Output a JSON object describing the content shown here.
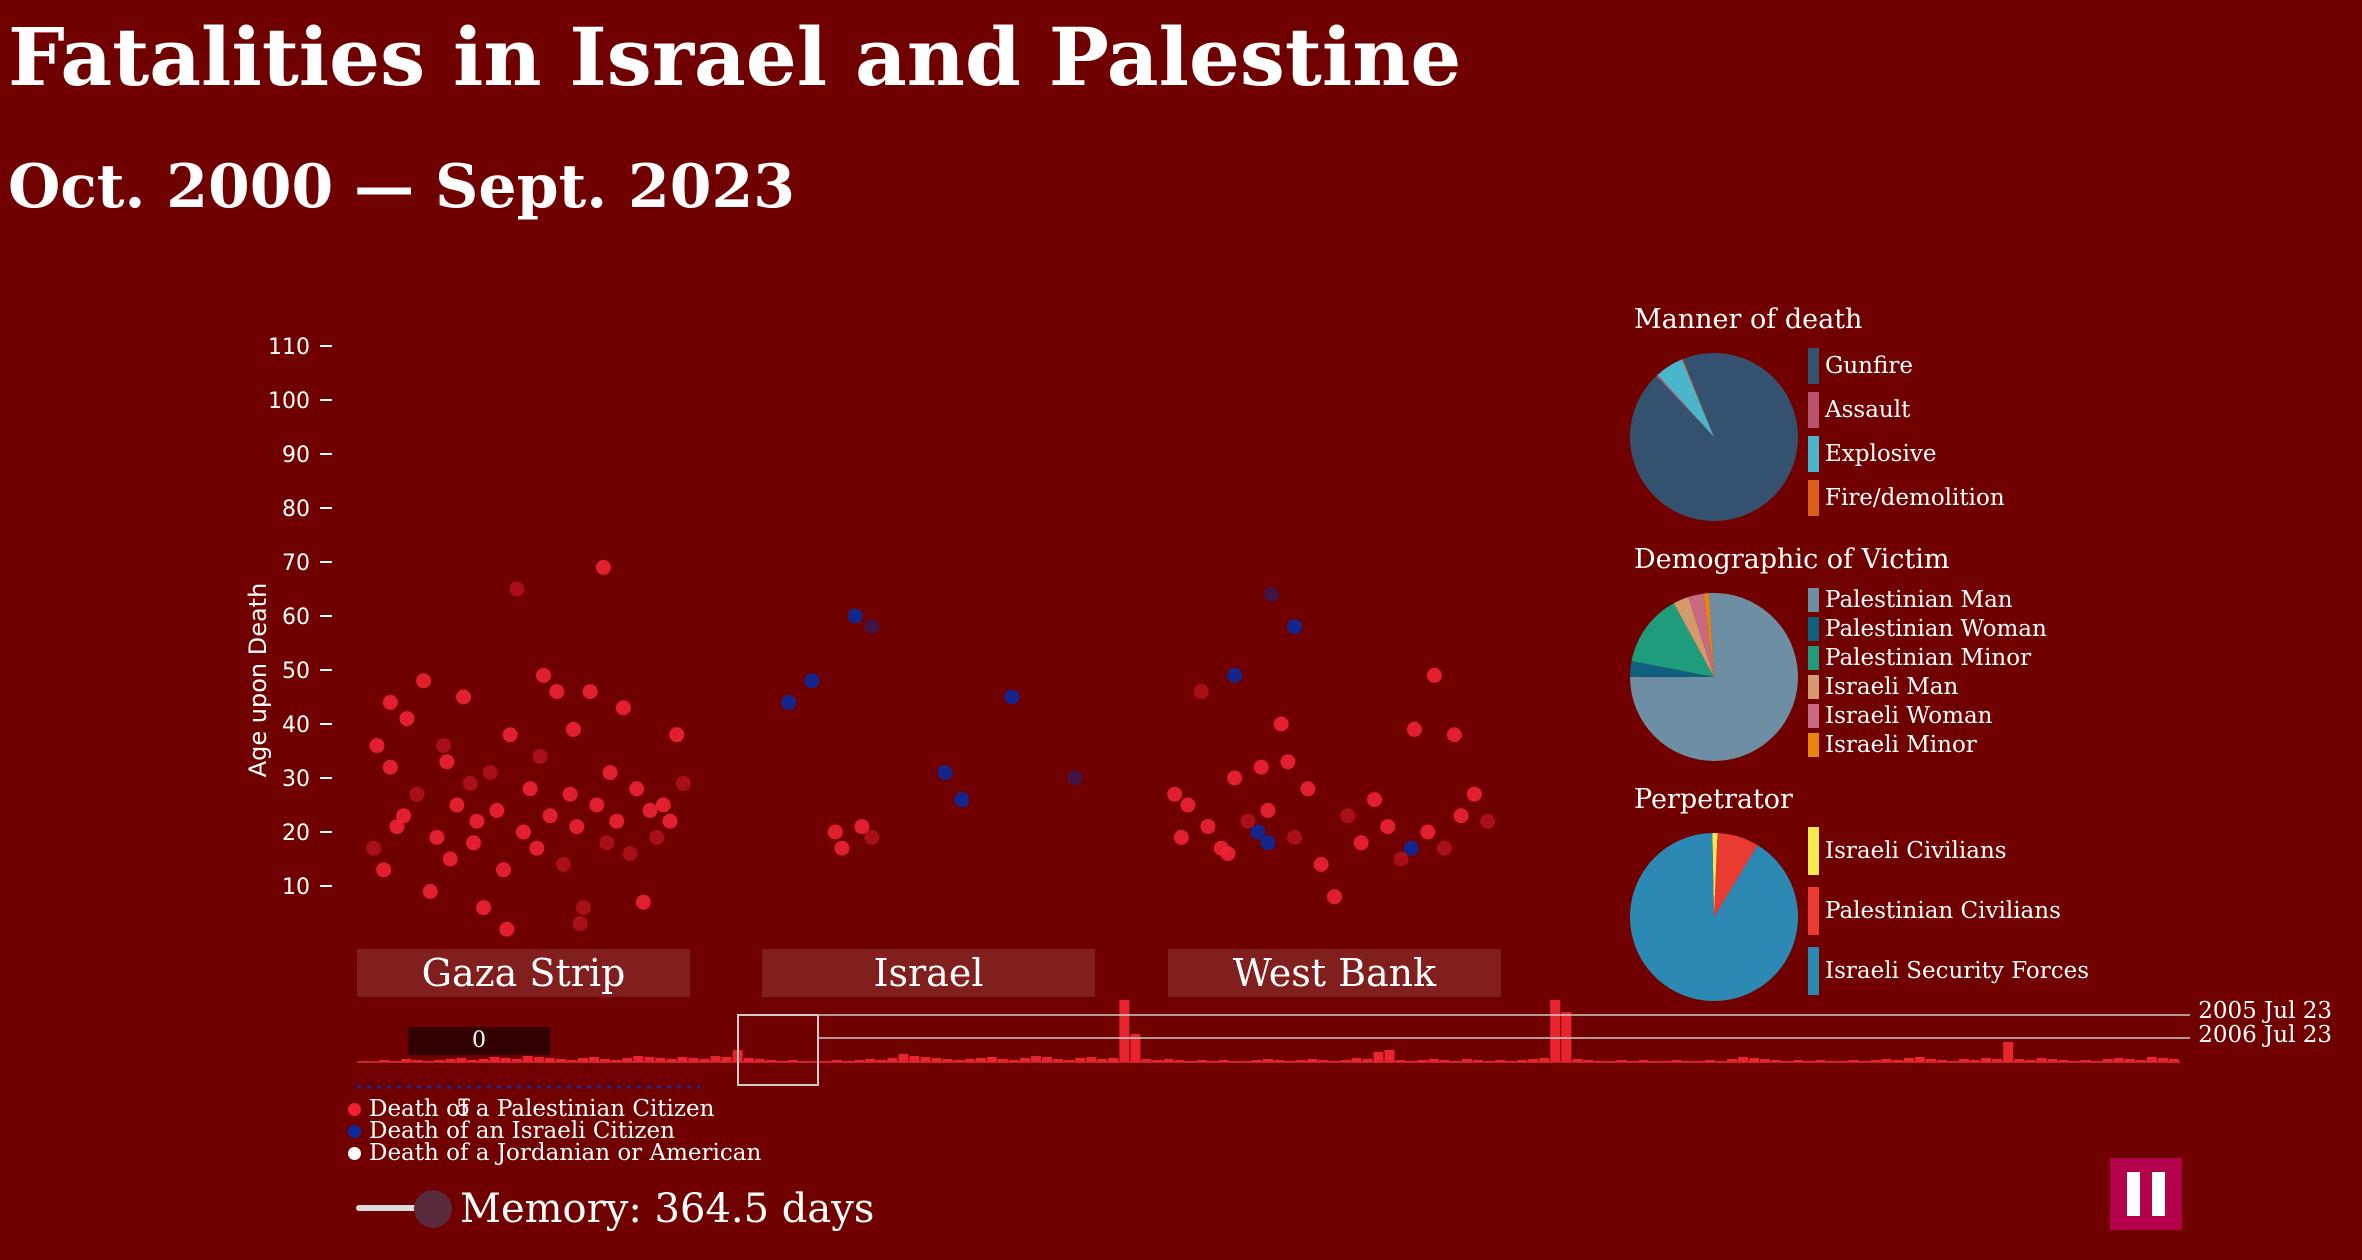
{
  "title": "Fatalities in Israel and Palestine",
  "subtitle": "Oct. 2000 — Sept. 2023",
  "colors": {
    "background": "#700000",
    "palestinian": "#ee2233",
    "israeli": "#0a2a9a",
    "jordanian_american": "#ffffff",
    "timeline_bar": "#e8242f"
  },
  "chart_data": [
    {
      "type": "scatter",
      "ylabel": "Age upon Death",
      "yticks": [
        10,
        20,
        30,
        40,
        50,
        60,
        70,
        80,
        90,
        100,
        110
      ],
      "ylim": [
        0,
        115
      ],
      "categories": [
        "Gaza Strip",
        "Israel",
        "West Bank"
      ],
      "series": [
        {
          "name": "Death of a Palestinian Citizen",
          "points": [
            {
              "region": "Gaza Strip",
              "x": 0.1,
              "y": 44
            },
            {
              "region": "Gaza Strip",
              "x": 0.06,
              "y": 36
            },
            {
              "region": "Gaza Strip",
              "x": 0.1,
              "y": 32
            },
            {
              "region": "Gaza Strip",
              "x": 0.05,
              "y": 17
            },
            {
              "region": "Gaza Strip",
              "x": 0.08,
              "y": 13
            },
            {
              "region": "Gaza Strip",
              "x": 0.12,
              "y": 21
            },
            {
              "region": "Gaza Strip",
              "x": 0.14,
              "y": 23
            },
            {
              "region": "Gaza Strip",
              "x": 0.18,
              "y": 27
            },
            {
              "region": "Gaza Strip",
              "x": 0.2,
              "y": 48
            },
            {
              "region": "Gaza Strip",
              "x": 0.22,
              "y": 9
            },
            {
              "region": "Gaza Strip",
              "x": 0.24,
              "y": 19
            },
            {
              "region": "Gaza Strip",
              "x": 0.26,
              "y": 36
            },
            {
              "region": "Gaza Strip",
              "x": 0.28,
              "y": 15
            },
            {
              "region": "Gaza Strip",
              "x": 0.3,
              "y": 25
            },
            {
              "region": "Gaza Strip",
              "x": 0.32,
              "y": 45
            },
            {
              "region": "Gaza Strip",
              "x": 0.34,
              "y": 29
            },
            {
              "region": "Gaza Strip",
              "x": 0.35,
              "y": 18
            },
            {
              "region": "Gaza Strip",
              "x": 0.36,
              "y": 22
            },
            {
              "region": "Gaza Strip",
              "x": 0.38,
              "y": 6
            },
            {
              "region": "Gaza Strip",
              "x": 0.4,
              "y": 31
            },
            {
              "region": "Gaza Strip",
              "x": 0.42,
              "y": 24
            },
            {
              "region": "Gaza Strip",
              "x": 0.44,
              "y": 13
            },
            {
              "region": "Gaza Strip",
              "x": 0.46,
              "y": 38
            },
            {
              "region": "Gaza Strip",
              "x": 0.48,
              "y": 65
            },
            {
              "region": "Gaza Strip",
              "x": 0.5,
              "y": 20
            },
            {
              "region": "Gaza Strip",
              "x": 0.52,
              "y": 28
            },
            {
              "region": "Gaza Strip",
              "x": 0.54,
              "y": 17
            },
            {
              "region": "Gaza Strip",
              "x": 0.55,
              "y": 34
            },
            {
              "region": "Gaza Strip",
              "x": 0.56,
              "y": 49
            },
            {
              "region": "Gaza Strip",
              "x": 0.58,
              "y": 23
            },
            {
              "region": "Gaza Strip",
              "x": 0.6,
              "y": 46
            },
            {
              "region": "Gaza Strip",
              "x": 0.62,
              "y": 14
            },
            {
              "region": "Gaza Strip",
              "x": 0.64,
              "y": 27
            },
            {
              "region": "Gaza Strip",
              "x": 0.65,
              "y": 39
            },
            {
              "region": "Gaza Strip",
              "x": 0.66,
              "y": 21
            },
            {
              "region": "Gaza Strip",
              "x": 0.68,
              "y": 6
            },
            {
              "region": "Gaza Strip",
              "x": 0.7,
              "y": 46
            },
            {
              "region": "Gaza Strip",
              "x": 0.72,
              "y": 25
            },
            {
              "region": "Gaza Strip",
              "x": 0.74,
              "y": 69
            },
            {
              "region": "Gaza Strip",
              "x": 0.75,
              "y": 18
            },
            {
              "region": "Gaza Strip",
              "x": 0.76,
              "y": 31
            },
            {
              "region": "Gaza Strip",
              "x": 0.78,
              "y": 22
            },
            {
              "region": "Gaza Strip",
              "x": 0.8,
              "y": 43
            },
            {
              "region": "Gaza Strip",
              "x": 0.82,
              "y": 16
            },
            {
              "region": "Gaza Strip",
              "x": 0.84,
              "y": 28
            },
            {
              "region": "Gaza Strip",
              "x": 0.86,
              "y": 7
            },
            {
              "region": "Gaza Strip",
              "x": 0.88,
              "y": 24
            },
            {
              "region": "Gaza Strip",
              "x": 0.9,
              "y": 19
            },
            {
              "region": "Gaza Strip",
              "x": 0.92,
              "y": 25
            },
            {
              "region": "Gaza Strip",
              "x": 0.94,
              "y": 22
            },
            {
              "region": "Gaza Strip",
              "x": 0.96,
              "y": 38
            },
            {
              "region": "Gaza Strip",
              "x": 0.98,
              "y": 29
            },
            {
              "region": "Gaza Strip",
              "x": 0.15,
              "y": 41
            },
            {
              "region": "Gaza Strip",
              "x": 0.27,
              "y": 33
            },
            {
              "region": "Gaza Strip",
              "x": 0.45,
              "y": 2
            },
            {
              "region": "Gaza Strip",
              "x": 0.67,
              "y": 3
            },
            {
              "region": "Israel",
              "x": 0.22,
              "y": 20
            },
            {
              "region": "Israel",
              "x": 0.24,
              "y": 17
            },
            {
              "region": "Israel",
              "x": 0.3,
              "y": 21
            },
            {
              "region": "Israel",
              "x": 0.33,
              "y": 19
            },
            {
              "region": "West Bank",
              "x": 0.02,
              "y": 27
            },
            {
              "region": "West Bank",
              "x": 0.04,
              "y": 19
            },
            {
              "region": "West Bank",
              "x": 0.06,
              "y": 25
            },
            {
              "region": "West Bank",
              "x": 0.1,
              "y": 46
            },
            {
              "region": "West Bank",
              "x": 0.12,
              "y": 21
            },
            {
              "region": "West Bank",
              "x": 0.16,
              "y": 17
            },
            {
              "region": "West Bank",
              "x": 0.2,
              "y": 30
            },
            {
              "region": "West Bank",
              "x": 0.24,
              "y": 22
            },
            {
              "region": "West Bank",
              "x": 0.28,
              "y": 32
            },
            {
              "region": "West Bank",
              "x": 0.3,
              "y": 24
            },
            {
              "region": "West Bank",
              "x": 0.34,
              "y": 40
            },
            {
              "region": "West Bank",
              "x": 0.38,
              "y": 19
            },
            {
              "region": "West Bank",
              "x": 0.42,
              "y": 28
            },
            {
              "region": "West Bank",
              "x": 0.46,
              "y": 14
            },
            {
              "region": "West Bank",
              "x": 0.5,
              "y": 8
            },
            {
              "region": "West Bank",
              "x": 0.54,
              "y": 23
            },
            {
              "region": "West Bank",
              "x": 0.58,
              "y": 18
            },
            {
              "region": "West Bank",
              "x": 0.62,
              "y": 26
            },
            {
              "region": "West Bank",
              "x": 0.66,
              "y": 21
            },
            {
              "region": "West Bank",
              "x": 0.7,
              "y": 15
            },
            {
              "region": "West Bank",
              "x": 0.74,
              "y": 39
            },
            {
              "region": "West Bank",
              "x": 0.78,
              "y": 20
            },
            {
              "region": "West Bank",
              "x": 0.8,
              "y": 49
            },
            {
              "region": "West Bank",
              "x": 0.83,
              "y": 17
            },
            {
              "region": "West Bank",
              "x": 0.86,
              "y": 38
            },
            {
              "region": "West Bank",
              "x": 0.88,
              "y": 23
            },
            {
              "region": "West Bank",
              "x": 0.92,
              "y": 27
            },
            {
              "region": "West Bank",
              "x": 0.96,
              "y": 22
            },
            {
              "region": "West Bank",
              "x": 0.18,
              "y": 16
            },
            {
              "region": "West Bank",
              "x": 0.36,
              "y": 33
            }
          ]
        },
        {
          "name": "Death of an Israeli Citizen",
          "points": [
            {
              "region": "Israel",
              "x": 0.08,
              "y": 44
            },
            {
              "region": "Israel",
              "x": 0.15,
              "y": 48
            },
            {
              "region": "Israel",
              "x": 0.28,
              "y": 60
            },
            {
              "region": "Israel",
              "x": 0.33,
              "y": 58
            },
            {
              "region": "Israel",
              "x": 0.55,
              "y": 31
            },
            {
              "region": "Israel",
              "x": 0.6,
              "y": 26
            },
            {
              "region": "Israel",
              "x": 0.75,
              "y": 45
            },
            {
              "region": "Israel",
              "x": 0.94,
              "y": 30
            },
            {
              "region": "West Bank",
              "x": 0.2,
              "y": 49
            },
            {
              "region": "West Bank",
              "x": 0.27,
              "y": 20
            },
            {
              "region": "West Bank",
              "x": 0.3,
              "y": 18
            },
            {
              "region": "West Bank",
              "x": 0.31,
              "y": 64
            },
            {
              "region": "West Bank",
              "x": 0.38,
              "y": 58
            },
            {
              "region": "West Bank",
              "x": 0.73,
              "y": 17
            }
          ]
        },
        {
          "name": "Death of a Jordanian or American",
          "points": []
        }
      ]
    },
    {
      "type": "pie",
      "title": "Manner of death",
      "series": [
        {
          "name": "Gunfire",
          "value": 94,
          "color": "#34526f"
        },
        {
          "name": "Assault",
          "value": 0.3,
          "color": "#b7536d"
        },
        {
          "name": "Explosive",
          "value": 5.5,
          "color": "#4bb5cc"
        },
        {
          "name": "Fire/demolition",
          "value": 0.2,
          "color": "#d9601b"
        }
      ]
    },
    {
      "type": "pie",
      "title": "Demographic of Victim",
      "series": [
        {
          "name": "Palestinian Man",
          "value": 76,
          "color": "#6e8fa3"
        },
        {
          "name": "Palestinian Woman",
          "value": 3,
          "color": "#0f5f7f"
        },
        {
          "name": "Palestinian Minor",
          "value": 14,
          "color": "#1e9c7b"
        },
        {
          "name": "Israeli Man",
          "value": 3,
          "color": "#d59a6c"
        },
        {
          "name": "Israeli Woman",
          "value": 3,
          "color": "#c7697f"
        },
        {
          "name": "Israeli Minor",
          "value": 1,
          "color": "#e8850e"
        }
      ]
    },
    {
      "type": "pie",
      "title": "Perpetrator",
      "series": [
        {
          "name": "Israeli Civilians",
          "value": 1,
          "color": "#f6e94a"
        },
        {
          "name": "Palestinian Civilians",
          "value": 8,
          "color": "#ea3b33"
        },
        {
          "name": "Israeli Security Forces",
          "value": 91,
          "color": "#2c89b3"
        }
      ]
    },
    {
      "type": "bar",
      "title": "",
      "x_labels": [
        "2005 Jul 23",
        "2006 Jul 23"
      ],
      "values": [
        1,
        0,
        2,
        1,
        3,
        2,
        1,
        2,
        3,
        4,
        2,
        3,
        5,
        4,
        3,
        6,
        5,
        4,
        3,
        2,
        4,
        5,
        3,
        2,
        4,
        6,
        5,
        4,
        3,
        5,
        4,
        3,
        6,
        5,
        12,
        4,
        3,
        2,
        1,
        2,
        1,
        1,
        1,
        2,
        1,
        2,
        3,
        2,
        4,
        8,
        6,
        5,
        4,
        3,
        2,
        3,
        4,
        5,
        3,
        2,
        4,
        6,
        5,
        3,
        2,
        4,
        5,
        3,
        4,
        70,
        28,
        3,
        2,
        3,
        2,
        1,
        2,
        1,
        2,
        1,
        1,
        2,
        3,
        2,
        1,
        2,
        3,
        2,
        1,
        2,
        4,
        3,
        10,
        12,
        2,
        1,
        2,
        3,
        2,
        1,
        3,
        2,
        1,
        2,
        1,
        2,
        3,
        4,
        100,
        50,
        3,
        2,
        1,
        1,
        2,
        1,
        2,
        1,
        1,
        2,
        1,
        1,
        2,
        1,
        3,
        5,
        4,
        3,
        2,
        1,
        2,
        1,
        2,
        1,
        1,
        2,
        1,
        2,
        3,
        2,
        4,
        5,
        3,
        2,
        1,
        3,
        2,
        4,
        3,
        20,
        3,
        2,
        4,
        3,
        2,
        1,
        2,
        1,
        3,
        4,
        3,
        2,
        5,
        4,
        3
      ]
    }
  ],
  "region_labels": [
    "Gaza Strip",
    "Israel",
    "West Bank"
  ],
  "timeline": {
    "date_label_1": "2005 Jul 23",
    "date_label_2": "2006 Jul 23",
    "slider_value_top": "0",
    "slider_value_bottom": "5"
  },
  "legend": {
    "palestinian": "Death of a Palestinian Citizen",
    "israeli": "Death of an Israeli Citizen",
    "jordanian_american": "Death of a Jordanian or American"
  },
  "memory_label": "Memory: 364.5 days",
  "icons": {
    "pause": "pause-icon"
  }
}
